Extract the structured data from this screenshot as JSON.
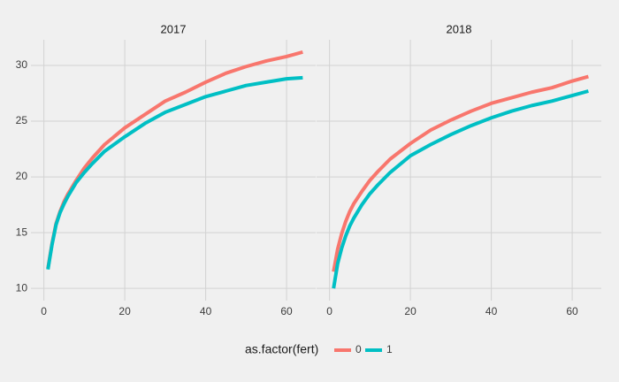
{
  "chart_data": [
    {
      "type": "line",
      "title": "2017",
      "x": [
        1,
        2,
        3,
        4,
        5,
        6,
        8,
        10,
        12,
        15,
        20,
        25,
        30,
        35,
        40,
        45,
        50,
        55,
        60,
        64
      ],
      "series": [
        {
          "name": "0",
          "color": "#F8766D",
          "values": [
            11.8,
            14.0,
            15.8,
            16.9,
            17.8,
            18.5,
            19.7,
            20.8,
            21.7,
            22.9,
            24.4,
            25.6,
            26.8,
            27.6,
            28.5,
            29.3,
            29.9,
            30.4,
            30.8,
            31.2
          ]
        },
        {
          "name": "1",
          "color": "#00BFC4",
          "values": [
            11.7,
            13.9,
            15.7,
            16.8,
            17.6,
            18.3,
            19.5,
            20.4,
            21.2,
            22.3,
            23.6,
            24.8,
            25.8,
            26.5,
            27.2,
            27.7,
            28.2,
            28.5,
            28.8,
            28.9
          ]
        }
      ],
      "xlim": [
        -3.2,
        67.2
      ],
      "ylim": [
        8.9,
        32.3
      ],
      "xticks": [
        0,
        20,
        40,
        60
      ],
      "yticks": [
        10,
        15,
        20,
        25,
        30
      ],
      "grid": true
    },
    {
      "type": "line",
      "title": "2018",
      "x": [
        1,
        2,
        3,
        4,
        5,
        6,
        8,
        10,
        12,
        15,
        20,
        25,
        30,
        35,
        40,
        45,
        50,
        55,
        60,
        64
      ],
      "series": [
        {
          "name": "0",
          "color": "#F8766D",
          "values": [
            11.5,
            13.5,
            14.9,
            16.0,
            16.9,
            17.6,
            18.7,
            19.7,
            20.5,
            21.6,
            23.0,
            24.2,
            25.1,
            25.9,
            26.6,
            27.1,
            27.6,
            28.0,
            28.6,
            29.0
          ]
        },
        {
          "name": "1",
          "color": "#00BFC4",
          "values": [
            10.0,
            12.2,
            13.6,
            14.7,
            15.6,
            16.3,
            17.5,
            18.5,
            19.3,
            20.4,
            21.9,
            22.9,
            23.8,
            24.6,
            25.3,
            25.9,
            26.4,
            26.8,
            27.3,
            27.7
          ]
        }
      ],
      "xlim": [
        -3.2,
        67.2
      ],
      "ylim": [
        8.9,
        32.3
      ],
      "xticks": [
        0,
        20,
        40,
        60
      ],
      "yticks": [
        10,
        15,
        20,
        25,
        30
      ],
      "grid": true
    }
  ],
  "legend": {
    "title": "as.factor(fert)",
    "position": "bottom"
  }
}
